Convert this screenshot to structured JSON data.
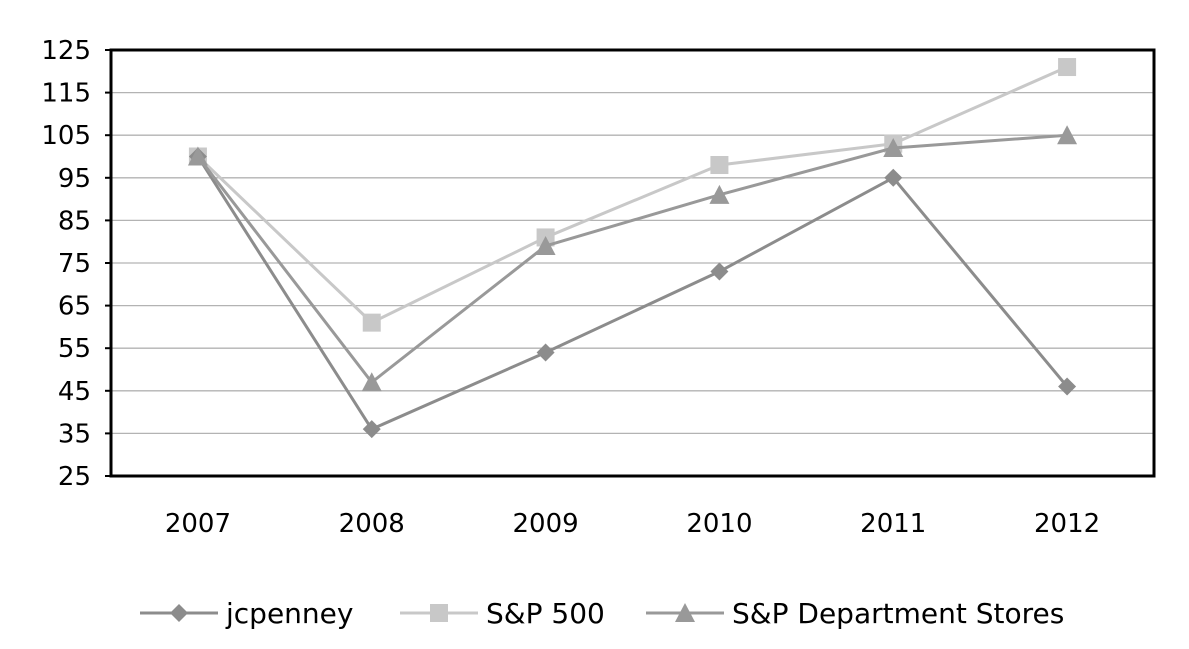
{
  "chart_data": {
    "type": "line",
    "title": "",
    "xlabel": "",
    "ylabel": "",
    "categories": [
      "2007",
      "2008",
      "2009",
      "2010",
      "2011",
      "2012"
    ],
    "ylim": [
      25,
      125
    ],
    "y_ticks": [
      25,
      35,
      45,
      55,
      65,
      75,
      85,
      95,
      105,
      115,
      125
    ],
    "grid": "horizontal",
    "legend_position": "bottom",
    "series": [
      {
        "name": "jcpenney",
        "values": [
          100,
          36,
          54,
          73,
          95,
          46
        ],
        "color": "#8c8c8c",
        "marker": "diamond"
      },
      {
        "name": "S&P 500",
        "values": [
          100,
          61,
          81,
          98,
          103,
          121
        ],
        "color": "#c8c8c8",
        "marker": "square"
      },
      {
        "name": "S&P Department Stores",
        "values": [
          100,
          47,
          79,
          91,
          102,
          105
        ],
        "color": "#999999",
        "marker": "triangle"
      }
    ]
  }
}
